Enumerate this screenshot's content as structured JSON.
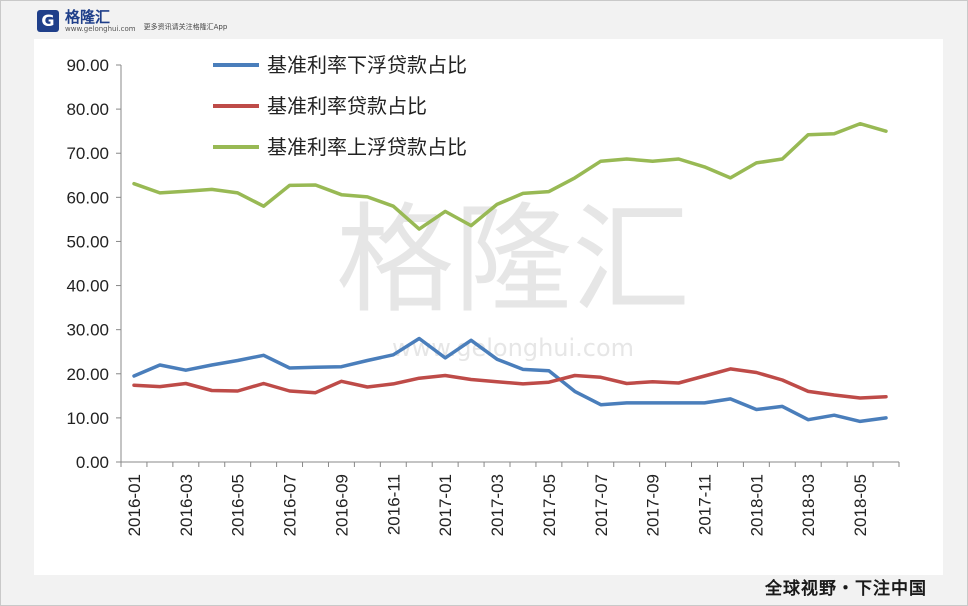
{
  "brand": {
    "logo_letter": "G",
    "name": "格隆汇",
    "domain": "www.gelonghui.com",
    "slogan": "更多资讯请关注格隆汇App",
    "footer": "全球视野・下注中国",
    "watermark": "格隆汇",
    "watermark_url": "www.gelonghui.com"
  },
  "chart_data": {
    "type": "line",
    "title": "",
    "xlabel": "",
    "ylabel": "",
    "ylim": [
      0,
      90
    ],
    "yticks": [
      "0.00",
      "10.00",
      "20.00",
      "30.00",
      "40.00",
      "50.00",
      "60.00",
      "70.00",
      "80.00",
      "90.00"
    ],
    "x": [
      "2016-01",
      "2016-02",
      "2016-03",
      "2016-04",
      "2016-05",
      "2016-06",
      "2016-07",
      "2016-08",
      "2016-09",
      "2016-10",
      "2016-11",
      "2016-12",
      "2017-01",
      "2017-02",
      "2017-03",
      "2017-04",
      "2017-05",
      "2017-06",
      "2017-07",
      "2017-08",
      "2017-09",
      "2017-10",
      "2017-11",
      "2017-12",
      "2018-01",
      "2018-02",
      "2018-03",
      "2018-04",
      "2018-05",
      "2018-06"
    ],
    "xtick_labels": [
      "2016-01",
      "2016-03",
      "2016-05",
      "2016-07",
      "2016-09",
      "2016-11",
      "2017-01",
      "2017-03",
      "2017-05",
      "2017-07",
      "2017-09",
      "2017-11",
      "2018-01",
      "2018-03",
      "2018-05"
    ],
    "legend_position": "top",
    "grid": false,
    "series": [
      {
        "name": "基准利率下浮贷款占比",
        "color": "#4a7ebb",
        "values": [
          19.5,
          22.0,
          20.8,
          22.0,
          23.0,
          24.2,
          21.3,
          21.5,
          21.6,
          23.0,
          24.3,
          28.0,
          23.6,
          27.6,
          23.3,
          21.0,
          20.7,
          16.0,
          13.0,
          13.4,
          13.4,
          13.4,
          13.4,
          14.3,
          11.9,
          12.6,
          9.6,
          10.6,
          9.2,
          10.0
        ]
      },
      {
        "name": "基准利率贷款占比",
        "color": "#be4b48",
        "values": [
          17.4,
          17.1,
          17.8,
          16.2,
          16.1,
          17.8,
          16.1,
          15.7,
          18.3,
          17.0,
          17.7,
          19.0,
          19.6,
          18.7,
          18.2,
          17.7,
          18.1,
          19.6,
          19.2,
          17.8,
          18.2,
          17.9,
          19.5,
          21.1,
          20.3,
          18.6,
          16.0,
          15.2,
          14.5,
          14.8
        ]
      },
      {
        "name": "基准利率上浮贷款占比",
        "color": "#98b954",
        "values": [
          63.1,
          61.0,
          61.4,
          61.8,
          61.0,
          58.0,
          62.7,
          62.8,
          60.6,
          60.1,
          58.0,
          52.8,
          56.8,
          53.6,
          58.4,
          60.9,
          61.3,
          64.4,
          68.2,
          68.7,
          68.2,
          68.7,
          66.9,
          64.4,
          67.8,
          68.7,
          74.2,
          74.4,
          76.7,
          75.0
        ]
      }
    ]
  }
}
